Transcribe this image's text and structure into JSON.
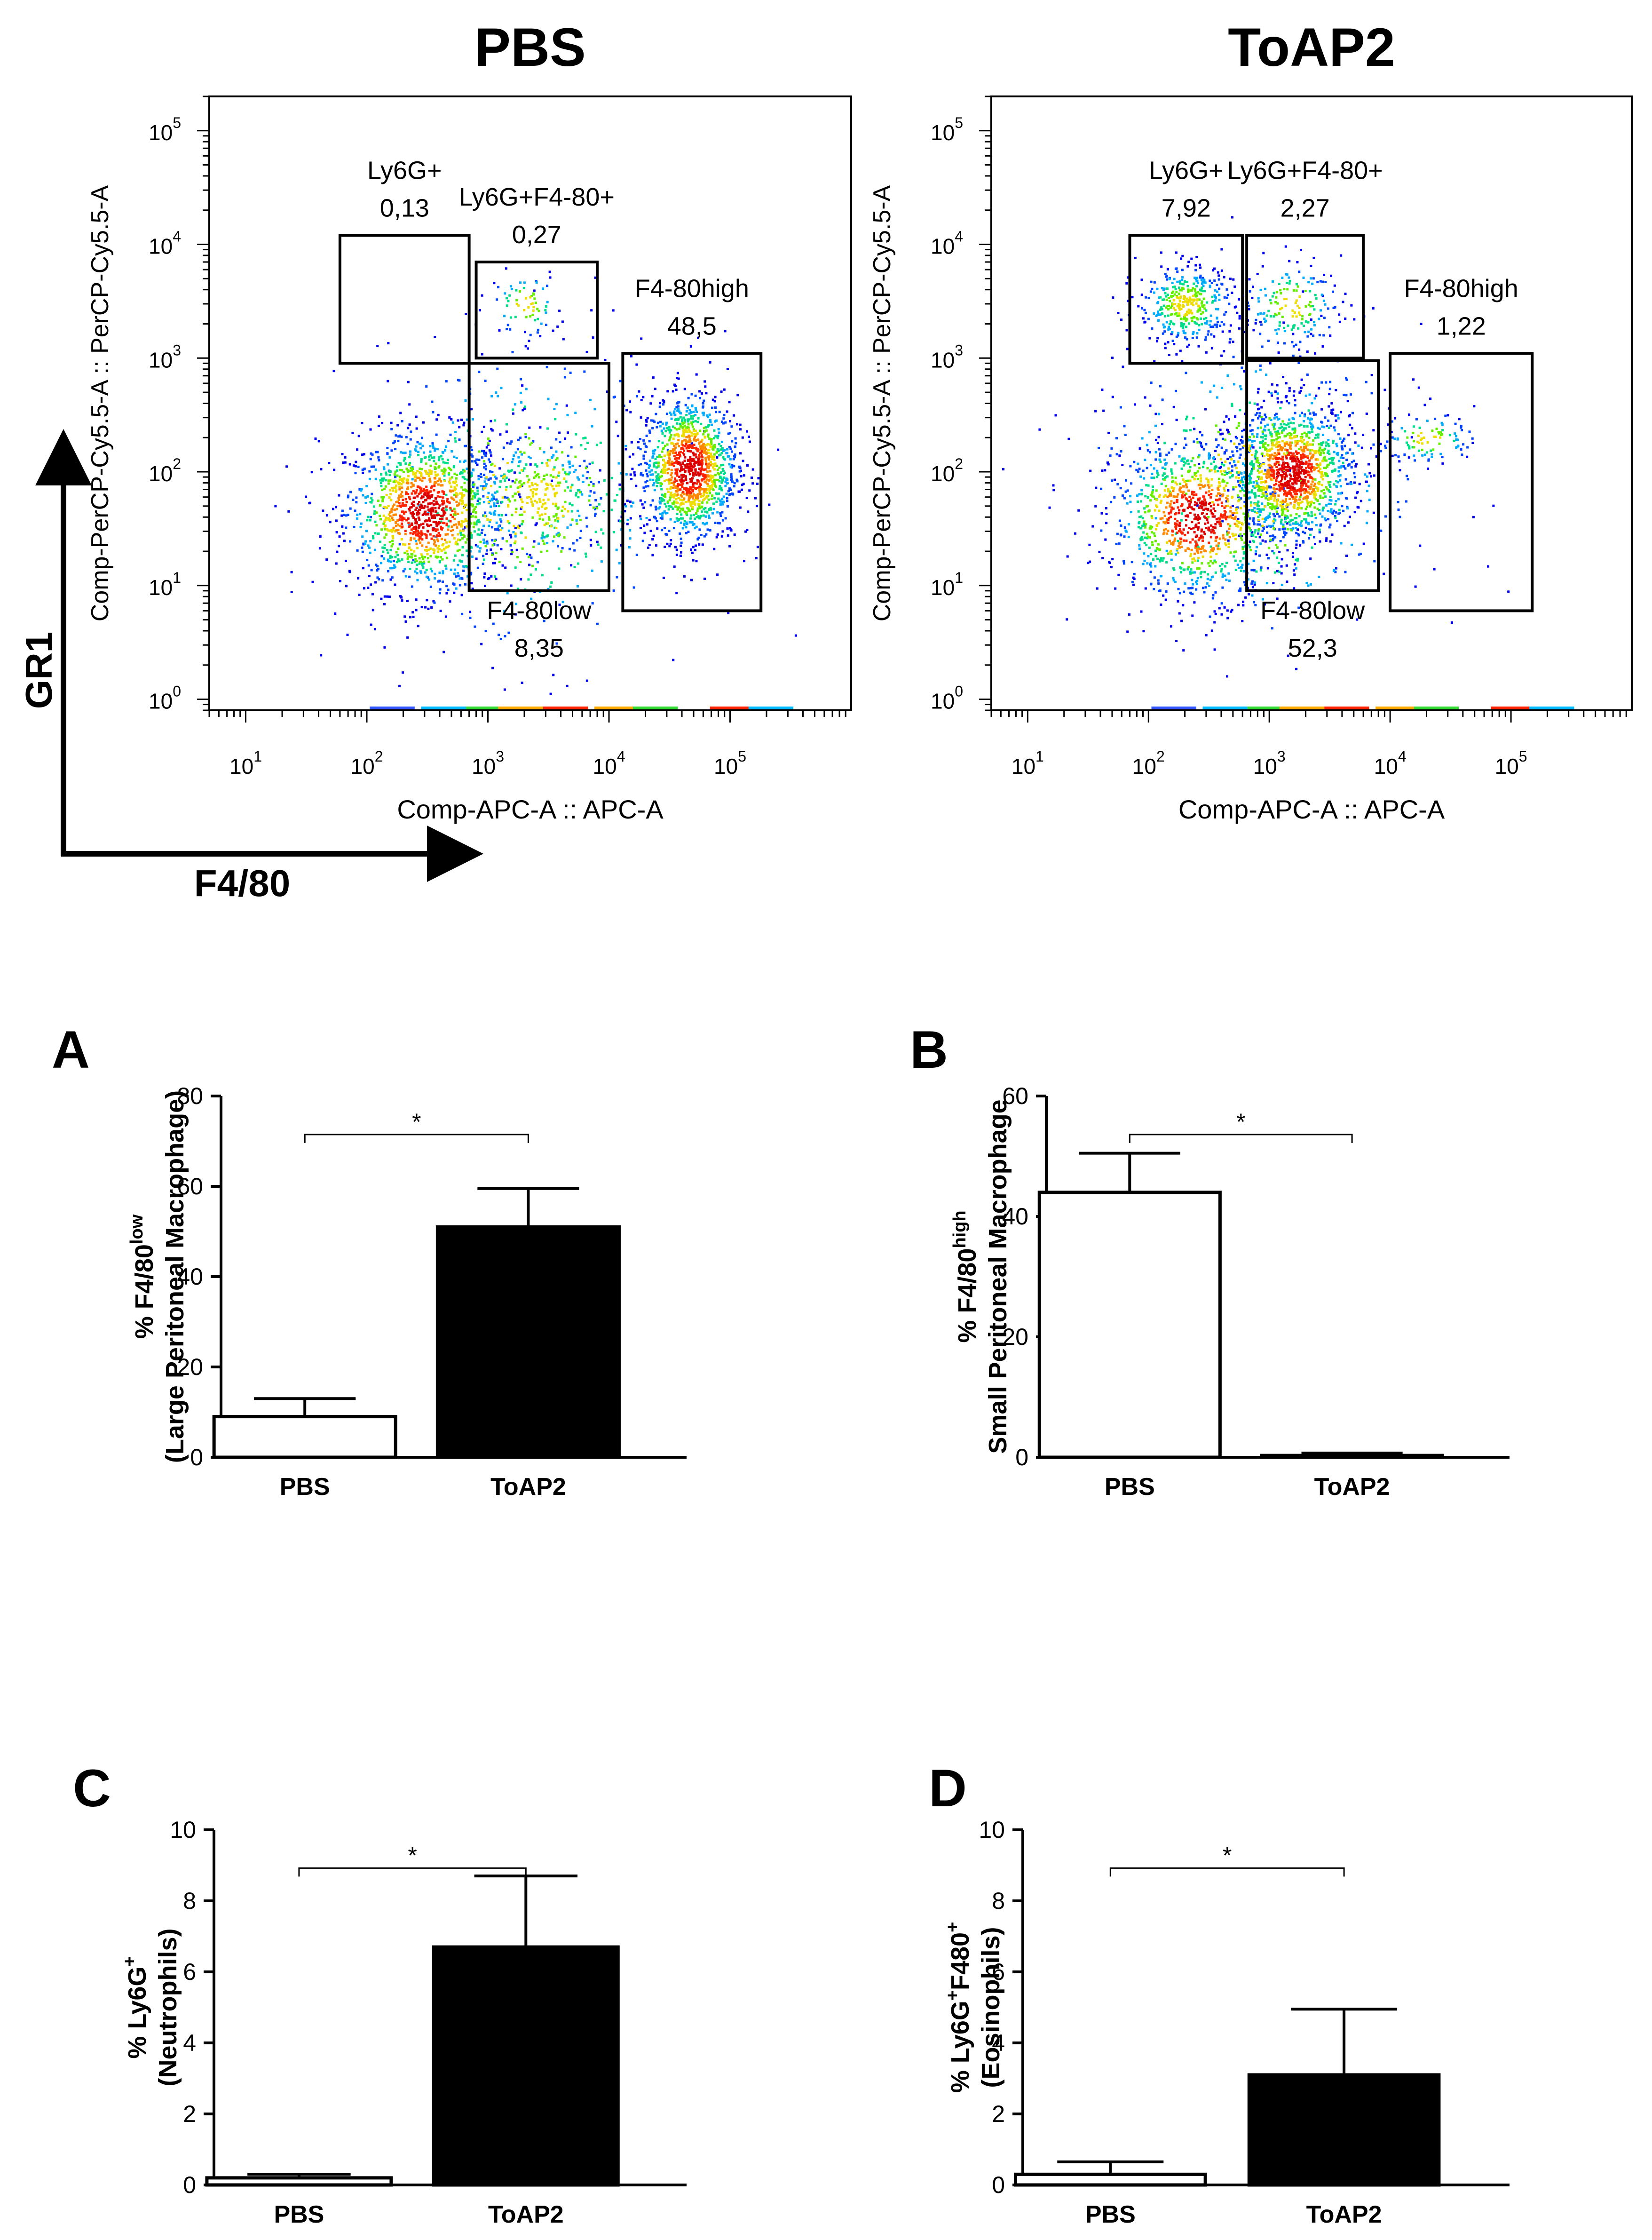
{
  "figure": {
    "flow_axes": {
      "y_label": "GR1",
      "x_label": "F4/80"
    }
  },
  "chart_data": [
    {
      "id": "flow-pbs",
      "type": "scatter",
      "subtype": "flow-cytometry-density-plot",
      "title": "PBS",
      "xlabel": "Comp-APC-A :: APC-A",
      "ylabel": "Comp-PerCP-Cy5.5-A :: PerCP-Cy5.5-A",
      "xscale": "log",
      "yscale": "log",
      "xlim": [
        5,
        1000000
      ],
      "ylim": [
        0.8,
        200000
      ],
      "x_ticks": [
        {
          "v": 10,
          "base": "10",
          "exp": "1"
        },
        {
          "v": 100,
          "base": "10",
          "exp": "2"
        },
        {
          "v": 1000,
          "base": "10",
          "exp": "3"
        },
        {
          "v": 10000,
          "base": "10",
          "exp": "4"
        },
        {
          "v": 100000,
          "base": "10",
          "exp": "5"
        }
      ],
      "y_ticks": [
        {
          "v": 1,
          "base": "10",
          "exp": "0"
        },
        {
          "v": 10,
          "base": "10",
          "exp": "1"
        },
        {
          "v": 100,
          "base": "10",
          "exp": "2"
        },
        {
          "v": 1000,
          "base": "10",
          "exp": "3"
        },
        {
          "v": 10000,
          "base": "10",
          "exp": "4"
        },
        {
          "v": 100000,
          "base": "10",
          "exp": "5"
        }
      ],
      "clusters": [
        {
          "name": "low-F4/80 population",
          "x_center": 300,
          "y_center": 45,
          "spread_x": 0.33,
          "spread_y": 0.35,
          "share": 0.38
        },
        {
          "name": "F4/80high population",
          "x_center": 45000,
          "y_center": 110,
          "spread_x": 0.2,
          "spread_y": 0.32,
          "share": 0.38
        },
        {
          "name": "F4/80low population",
          "x_center": 2500,
          "y_center": 60,
          "spread_x": 0.3,
          "spread_y": 0.3,
          "share": 0.1
        },
        {
          "name": "Ly6G+F4-80+ population",
          "x_center": 2000,
          "y_center": 3000,
          "spread_x": 0.15,
          "spread_y": 0.15,
          "share": 0.02
        },
        {
          "name": "scatter background",
          "x_center": 2000,
          "y_center": 60,
          "spread_x": 0.7,
          "spread_y": 0.7,
          "share": 0.12
        }
      ],
      "gates": [
        {
          "name": "Ly6G+",
          "value": "0,13",
          "x_range": [
            60,
            700
          ],
          "y_range": [
            900,
            12000
          ]
        },
        {
          "name": "Ly6G+F4-80+",
          "value": "0,27",
          "x_range": [
            800,
            8000
          ],
          "y_range": [
            1000,
            7000
          ]
        },
        {
          "name": "F4-80high",
          "value": "48,5",
          "x_range": [
            13000,
            180000
          ],
          "y_range": [
            6,
            1100
          ]
        },
        {
          "name": "F4-80low",
          "value": "8,35",
          "x_range": [
            700,
            10000
          ],
          "y_range": [
            9,
            900
          ]
        }
      ]
    },
    {
      "id": "flow-toap2",
      "type": "scatter",
      "subtype": "flow-cytometry-density-plot",
      "title": "ToAP2",
      "xlabel": "Comp-APC-A :: APC-A",
      "ylabel": "Comp-PerCP-Cy5.5-A :: PerCP-Cy5.5-A",
      "xscale": "log",
      "yscale": "log",
      "xlim": [
        5,
        1000000
      ],
      "ylim": [
        0.8,
        200000
      ],
      "x_ticks": [
        {
          "v": 10,
          "base": "10",
          "exp": "1"
        },
        {
          "v": 100,
          "base": "10",
          "exp": "2"
        },
        {
          "v": 1000,
          "base": "10",
          "exp": "3"
        },
        {
          "v": 10000,
          "base": "10",
          "exp": "4"
        },
        {
          "v": 100000,
          "base": "10",
          "exp": "5"
        }
      ],
      "y_ticks": [
        {
          "v": 1,
          "base": "10",
          "exp": "0"
        },
        {
          "v": 10,
          "base": "10",
          "exp": "1"
        },
        {
          "v": 100,
          "base": "10",
          "exp": "2"
        },
        {
          "v": 1000,
          "base": "10",
          "exp": "3"
        },
        {
          "v": 10000,
          "base": "10",
          "exp": "4"
        },
        {
          "v": 100000,
          "base": "10",
          "exp": "5"
        }
      ],
      "clusters": [
        {
          "name": "low-F4/80 population",
          "x_center": 250,
          "y_center": 40,
          "spread_x": 0.35,
          "spread_y": 0.35,
          "share": 0.3
        },
        {
          "name": "F4-80low population",
          "x_center": 1500,
          "y_center": 100,
          "spread_x": 0.25,
          "spread_y": 0.3,
          "share": 0.38
        },
        {
          "name": "Ly6G+ population",
          "x_center": 200,
          "y_center": 3000,
          "spread_x": 0.2,
          "spread_y": 0.18,
          "share": 0.12
        },
        {
          "name": "Ly6G+F4-80+ population",
          "x_center": 1500,
          "y_center": 3000,
          "spread_x": 0.2,
          "spread_y": 0.2,
          "share": 0.05
        },
        {
          "name": "F4-80high population",
          "x_center": 20000,
          "y_center": 200,
          "spread_x": 0.2,
          "spread_y": 0.12,
          "share": 0.03
        },
        {
          "name": "scatter background",
          "x_center": 700,
          "y_center": 80,
          "spread_x": 0.7,
          "spread_y": 0.7,
          "share": 0.12
        }
      ],
      "gates": [
        {
          "name": "Ly6G+",
          "value": "7,92",
          "x_range": [
            70,
            600
          ],
          "y_range": [
            900,
            12000
          ]
        },
        {
          "name": "Ly6G+F4-80+",
          "value": "2,27",
          "x_range": [
            650,
            6000
          ],
          "y_range": [
            1000,
            12000
          ]
        },
        {
          "name": "F4-80high",
          "value": "1,22",
          "x_range": [
            10000,
            150000
          ],
          "y_range": [
            6,
            1100
          ]
        },
        {
          "name": "F4-80low",
          "value": "52,3",
          "x_range": [
            650,
            8000
          ],
          "y_range": [
            9,
            950
          ]
        }
      ]
    },
    {
      "id": "bar-a",
      "type": "bar",
      "panel_label": "A",
      "categories": [
        "PBS",
        "ToAP2"
      ],
      "values": [
        9,
        51
      ],
      "errors": [
        4,
        8.5
      ],
      "fills": [
        "#ffffff",
        "#000000"
      ],
      "ylabel_main": "% F4/80",
      "ylabel_sup": "low",
      "ylabel_sub": "(Large Peritoneal Macrophage)",
      "ylim": [
        0,
        80
      ],
      "yticks": [
        0,
        20,
        40,
        60,
        80
      ],
      "significance": "*"
    },
    {
      "id": "bar-b",
      "type": "bar",
      "panel_label": "B",
      "categories": [
        "PBS",
        "ToAP2"
      ],
      "values": [
        44,
        0.3
      ],
      "errors": [
        6.5,
        0.4
      ],
      "fills": [
        "#ffffff",
        "#000000"
      ],
      "ylabel_main": "% F4/80",
      "ylabel_sup": "high",
      "ylabel_sub": "Small Peritoneal Macrophage",
      "ylim": [
        0,
        60
      ],
      "yticks": [
        0,
        20,
        40,
        60
      ],
      "significance": "*"
    },
    {
      "id": "bar-c",
      "type": "bar",
      "panel_label": "C",
      "categories": [
        "PBS",
        "ToAP2"
      ],
      "values": [
        0.2,
        6.7
      ],
      "errors": [
        0.1,
        2.0
      ],
      "fills": [
        "#ffffff",
        "#000000"
      ],
      "ylabel_main": "% Ly6G",
      "ylabel_sup": "+",
      "ylabel_sub": "(Neutrophils)",
      "ylim": [
        0,
        10
      ],
      "yticks": [
        0,
        2,
        4,
        6,
        8,
        10
      ],
      "significance": "*"
    },
    {
      "id": "bar-d",
      "type": "bar",
      "panel_label": "D",
      "categories": [
        "PBS",
        "ToAP2"
      ],
      "values": [
        0.3,
        3.1
      ],
      "errors": [
        0.35,
        1.85
      ],
      "fills": [
        "#ffffff",
        "#000000"
      ],
      "ylabel_main": "% Ly6G",
      "ylabel_sup": "+",
      "ylabel_mid": "F480",
      "ylabel_sup2": "+",
      "ylabel_sub": "(Eosinophils)",
      "ylim": [
        0,
        10
      ],
      "yticks": [
        0,
        2,
        4,
        6,
        8,
        10
      ],
      "significance": "*"
    }
  ]
}
